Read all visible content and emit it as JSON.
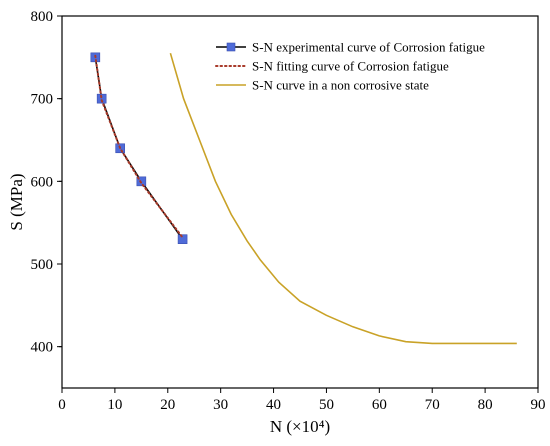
{
  "chart_data": {
    "type": "line",
    "title": "",
    "xlabel": "N (×10⁴)",
    "ylabel": "S (MPa)",
    "xlim": [
      0,
      90
    ],
    "ylim": [
      350,
      800
    ],
    "xticks": [
      0,
      10,
      20,
      30,
      40,
      50,
      60,
      70,
      80,
      90
    ],
    "yticks": [
      400,
      500,
      600,
      700,
      800
    ],
    "xtick_labels": [
      "0",
      "10",
      "20",
      "30",
      "40",
      "50",
      "60",
      "70",
      "80",
      "90"
    ],
    "ytick_labels": [
      "400",
      "500",
      "600",
      "700",
      "800"
    ],
    "grid": false,
    "legend_position": "top-right",
    "series": [
      {
        "name": "S-N experimental curve of Corrosion fatigue",
        "color": "#000000",
        "marker": "square",
        "marker_color": "#4f6bd8",
        "line_style": "solid",
        "x": [
          6.3,
          7.5,
          11.0,
          15.0,
          22.8
        ],
        "y": [
          750,
          700,
          640,
          600,
          530
        ]
      },
      {
        "name": "S-N fitting curve of Corrosion fatigue",
        "color": "#a83a2a",
        "line_style": "dotted",
        "x": [
          6.3,
          7.5,
          11.0,
          15.0,
          22.8
        ],
        "y": [
          752,
          698,
          640,
          598,
          532
        ]
      },
      {
        "name": "S-N curve in a non corrosive state",
        "color": "#c9a227",
        "line_style": "solid",
        "x": [
          20.5,
          23,
          26,
          29,
          32,
          35,
          37.5,
          41,
          45,
          50,
          55,
          60,
          65,
          70,
          75,
          80,
          86
        ],
        "y": [
          755,
          700,
          650,
          600,
          560,
          528,
          505,
          478,
          455,
          438,
          424,
          413,
          406,
          404,
          404,
          404,
          404
        ]
      }
    ]
  }
}
